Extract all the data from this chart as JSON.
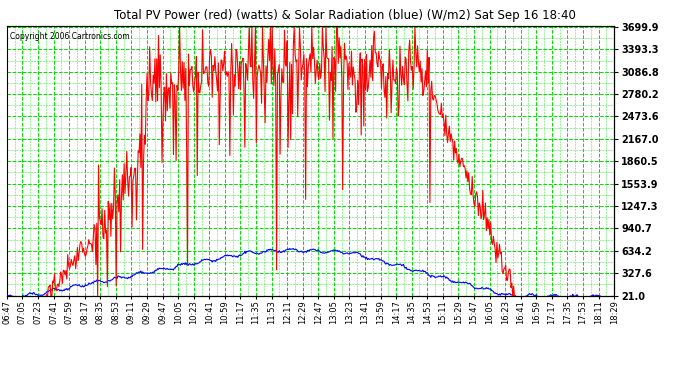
{
  "title": "Total PV Power (red) (watts) & Solar Radiation (blue) (W/m2) Sat Sep 16 18:40",
  "copyright": "Copyright 2006 Cartronics.com",
  "background_color": "#ffffff",
  "plot_background": "#ffffff",
  "grid_color": "#00dd00",
  "yticks": [
    21.0,
    327.6,
    634.2,
    940.7,
    1247.3,
    1553.9,
    1860.5,
    2167.0,
    2473.6,
    2780.2,
    3086.8,
    3393.3,
    3699.9
  ],
  "ymin": 21.0,
  "ymax": 3699.9,
  "x_labels": [
    "06:47",
    "07:05",
    "07:23",
    "07:41",
    "07:59",
    "08:17",
    "08:35",
    "08:53",
    "09:11",
    "09:29",
    "09:47",
    "10:05",
    "10:23",
    "10:41",
    "10:59",
    "11:17",
    "11:35",
    "11:53",
    "12:11",
    "12:29",
    "12:47",
    "13:05",
    "13:23",
    "13:41",
    "13:59",
    "14:17",
    "14:35",
    "14:53",
    "15:11",
    "15:29",
    "15:47",
    "16:05",
    "16:23",
    "16:41",
    "16:59",
    "17:17",
    "17:35",
    "17:53",
    "18:11",
    "18:29"
  ]
}
